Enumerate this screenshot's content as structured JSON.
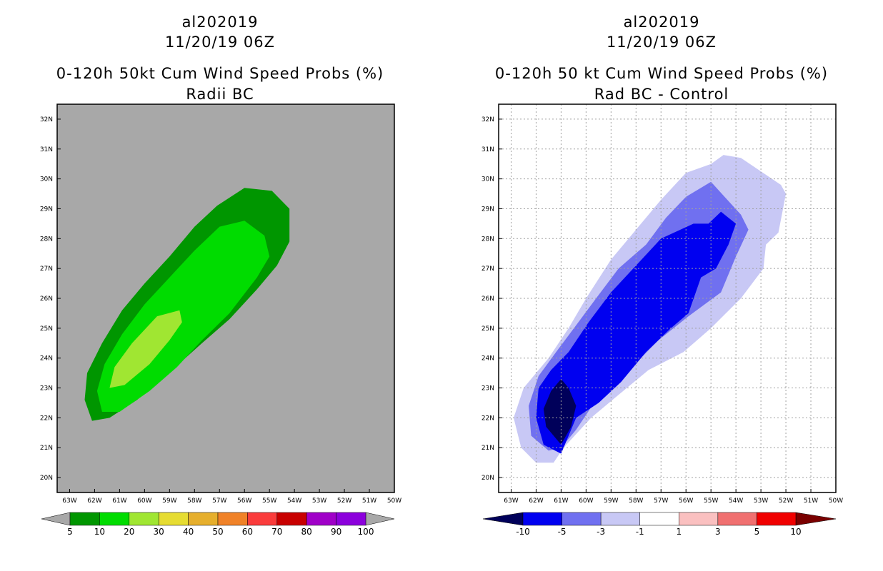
{
  "chart_data": [
    {
      "type": "contour-map",
      "title_lines": [
        "al202019",
        "11/20/19 06Z",
        "0-120h 50kt Cum Wind Speed Probs (%)",
        "Radii BC"
      ],
      "x_ticks": [
        "63W",
        "62W",
        "61W",
        "60W",
        "59W",
        "58W",
        "57W",
        "56W",
        "55W",
        "54W",
        "53W",
        "52W",
        "51W",
        "50W"
      ],
      "y_ticks": [
        "32N",
        "31N",
        "30N",
        "29N",
        "28N",
        "27N",
        "26N",
        "25N",
        "24N",
        "23N",
        "22N",
        "21N",
        "20N"
      ],
      "xlim_deg_west": [
        63.5,
        50
      ],
      "ylim_deg_north": [
        19.5,
        32.5
      ],
      "grid": false,
      "background_color": "#a8a8a8",
      "colorbar": {
        "labels": [
          "5",
          "10",
          "20",
          "30",
          "40",
          "50",
          "60",
          "70",
          "80",
          "90",
          "100"
        ],
        "colors": [
          "#009600",
          "#00dc00",
          "#a0e632",
          "#e6dc32",
          "#e6af2d",
          "#f08228",
          "#fa3c3c",
          "#c80000",
          "#a000c8",
          "#8c00dc"
        ]
      },
      "contours": [
        {
          "level": "5-10",
          "color": "#009600",
          "points": [
            [
              62.1,
              21.9
            ],
            [
              62.4,
              22.6
            ],
            [
              62.3,
              23.5
            ],
            [
              61.7,
              24.5
            ],
            [
              60.9,
              25.6
            ],
            [
              60.0,
              26.5
            ],
            [
              59.0,
              27.4
            ],
            [
              58.0,
              28.4
            ],
            [
              57.1,
              29.1
            ],
            [
              56.0,
              29.7
            ],
            [
              54.9,
              29.6
            ],
            [
              54.2,
              29.0
            ],
            [
              54.2,
              27.9
            ],
            [
              54.7,
              27.1
            ],
            [
              55.5,
              26.3
            ],
            [
              56.6,
              25.3
            ],
            [
              57.7,
              24.5
            ],
            [
              58.9,
              23.6
            ],
            [
              60.3,
              22.6
            ],
            [
              61.4,
              22.0
            ]
          ]
        },
        {
          "level": "10-20",
          "color": "#00dc00",
          "points": [
            [
              61.7,
              22.2
            ],
            [
              61.9,
              22.9
            ],
            [
              61.6,
              23.8
            ],
            [
              60.9,
              24.8
            ],
            [
              60.0,
              25.8
            ],
            [
              59.0,
              26.7
            ],
            [
              58.0,
              27.6
            ],
            [
              57.0,
              28.4
            ],
            [
              56.0,
              28.6
            ],
            [
              55.2,
              28.1
            ],
            [
              55.0,
              27.4
            ],
            [
              55.5,
              26.7
            ],
            [
              56.6,
              25.5
            ],
            [
              57.7,
              24.6
            ],
            [
              58.7,
              23.7
            ],
            [
              59.8,
              22.9
            ],
            [
              61.0,
              22.2
            ]
          ]
        },
        {
          "level": "20-30",
          "color": "#a0e632",
          "points": [
            [
              61.4,
              23.0
            ],
            [
              61.2,
              23.7
            ],
            [
              60.5,
              24.5
            ],
            [
              59.5,
              25.4
            ],
            [
              58.6,
              25.6
            ],
            [
              58.5,
              25.2
            ],
            [
              59.0,
              24.6
            ],
            [
              59.8,
              23.8
            ],
            [
              60.8,
              23.1
            ]
          ]
        }
      ]
    },
    {
      "type": "contour-map",
      "title_lines": [
        "al202019",
        "11/20/19 06Z",
        "0-120h 50 kt Cum Wind Speed Probs (%)",
        "Rad BC - Control"
      ],
      "x_ticks": [
        "63W",
        "62W",
        "61W",
        "60W",
        "59W",
        "58W",
        "57W",
        "56W",
        "55W",
        "54W",
        "53W",
        "52W",
        "51W",
        "50W"
      ],
      "y_ticks": [
        "32N",
        "31N",
        "30N",
        "29N",
        "28N",
        "27N",
        "26N",
        "25N",
        "24N",
        "23N",
        "22N",
        "21N",
        "20N"
      ],
      "xlim_deg_west": [
        63.5,
        50
      ],
      "ylim_deg_north": [
        19.5,
        32.5
      ],
      "grid": true,
      "background_color": "#ffffff",
      "colorbar": {
        "labels": [
          "-10",
          "-5",
          "-3",
          "-1",
          "1",
          "3",
          "5",
          "10"
        ],
        "colors": [
          "#00005a",
          "#0000f0",
          "#7070f0",
          "#c8c8f5",
          "#ffffff",
          "#fac0c0",
          "#f07070",
          "#f00000",
          "#7a0000"
        ]
      },
      "contours": [
        {
          "level": "-3 to -1",
          "color": "#c8c8f5",
          "points": [
            [
              62.0,
              20.5
            ],
            [
              62.6,
              21.0
            ],
            [
              62.9,
              22.0
            ],
            [
              62.5,
              23.0
            ],
            [
              61.5,
              24.0
            ],
            [
              60.7,
              25.0
            ],
            [
              60.0,
              26.0
            ],
            [
              59.0,
              27.3
            ],
            [
              58.0,
              28.3
            ],
            [
              57.0,
              29.3
            ],
            [
              56.0,
              30.2
            ],
            [
              55.0,
              30.5
            ],
            [
              54.5,
              30.8
            ],
            [
              53.8,
              30.7
            ],
            [
              52.2,
              29.8
            ],
            [
              52.0,
              29.5
            ],
            [
              52.3,
              28.2
            ],
            [
              52.8,
              27.8
            ],
            [
              52.9,
              27.0
            ],
            [
              53.8,
              26.0
            ],
            [
              55.0,
              25.0
            ],
            [
              56.1,
              24.2
            ],
            [
              57.5,
              23.6
            ],
            [
              58.8,
              22.7
            ],
            [
              59.8,
              22.0
            ],
            [
              60.9,
              21.0
            ],
            [
              61.3,
              20.5
            ]
          ]
        },
        {
          "level": "-5 to -3",
          "color": "#7070f0",
          "points": [
            [
              61.5,
              20.9
            ],
            [
              62.2,
              21.4
            ],
            [
              62.3,
              22.4
            ],
            [
              61.9,
              23.4
            ],
            [
              61.2,
              24.2
            ],
            [
              60.4,
              25.1
            ],
            [
              59.6,
              26.0
            ],
            [
              58.7,
              27.0
            ],
            [
              57.6,
              27.8
            ],
            [
              56.8,
              28.7
            ],
            [
              56.0,
              29.4
            ],
            [
              55.0,
              29.9
            ],
            [
              53.8,
              28.8
            ],
            [
              53.5,
              28.3
            ],
            [
              54.0,
              27.4
            ],
            [
              54.6,
              26.2
            ],
            [
              55.9,
              25.4
            ],
            [
              57.1,
              24.6
            ],
            [
              58.4,
              23.5
            ],
            [
              59.6,
              22.6
            ],
            [
              60.4,
              21.6
            ],
            [
              61.0,
              21.0
            ]
          ]
        },
        {
          "level": "-10 to -5",
          "color": "#0000f0",
          "points": [
            [
              61.0,
              20.8
            ],
            [
              61.7,
              21.1
            ],
            [
              62.0,
              22.0
            ],
            [
              61.9,
              23.0
            ],
            [
              61.4,
              23.6
            ],
            [
              60.7,
              24.2
            ],
            [
              59.9,
              25.2
            ],
            [
              59.0,
              26.2
            ],
            [
              58.0,
              27.1
            ],
            [
              57.0,
              28.0
            ],
            [
              55.7,
              28.5
            ],
            [
              55.1,
              28.5
            ],
            [
              54.6,
              28.9
            ],
            [
              54.0,
              28.5
            ],
            [
              54.3,
              27.8
            ],
            [
              54.8,
              27.0
            ],
            [
              55.4,
              26.7
            ],
            [
              55.9,
              25.5
            ],
            [
              56.6,
              25.0
            ],
            [
              57.6,
              24.2
            ],
            [
              58.6,
              23.2
            ],
            [
              59.5,
              22.5
            ],
            [
              60.4,
              22.0
            ],
            [
              60.8,
              21.2
            ]
          ]
        },
        {
          "level": "< -10",
          "color": "#00005a",
          "points": [
            [
              61.0,
              21.1
            ],
            [
              61.6,
              21.7
            ],
            [
              61.7,
              22.3
            ],
            [
              61.4,
              22.9
            ],
            [
              61.0,
              23.3
            ],
            [
              60.7,
              23.0
            ],
            [
              60.4,
              22.4
            ],
            [
              60.6,
              21.7
            ]
          ]
        }
      ]
    }
  ]
}
